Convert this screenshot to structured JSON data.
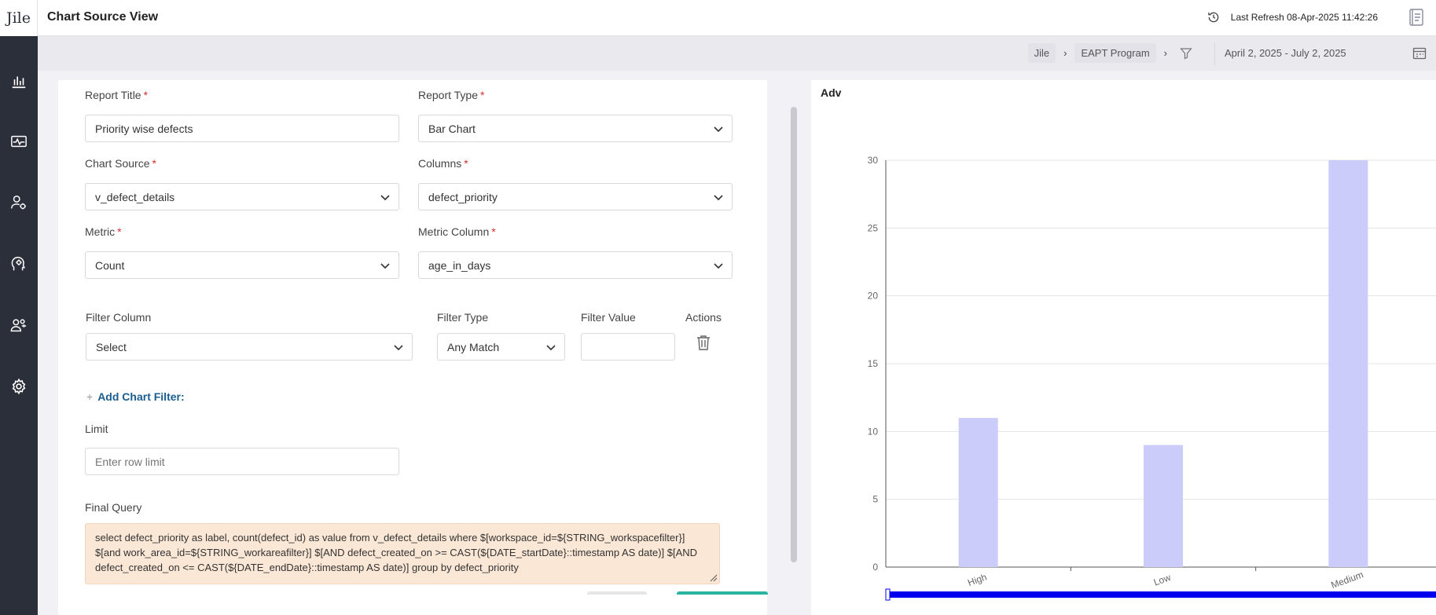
{
  "app": {
    "logo_text": "Jile"
  },
  "header": {
    "title": "Chart Source View",
    "last_refresh": "Last Refresh 08-Apr-2025 11:42:26"
  },
  "subbar": {
    "breadcrumbs": [
      "Jile",
      "EAPT Program"
    ],
    "date_range": "April 2, 2025 - July 2, 2025"
  },
  "sidebar": {
    "items": [
      {
        "icon": "bar-chart-icon"
      },
      {
        "icon": "monitor-pulse-icon"
      },
      {
        "icon": "user-settings-icon"
      },
      {
        "icon": "head-gear-icon"
      },
      {
        "icon": "team-icon"
      },
      {
        "icon": "gear-icon"
      }
    ]
  },
  "form": {
    "report_title_label": "Report Title",
    "report_title_value": "Priority wise defects",
    "report_type_label": "Report Type",
    "report_type_value": "Bar Chart",
    "chart_source_label": "Chart Source",
    "chart_source_value": "v_defect_details",
    "columns_label": "Columns",
    "columns_value": "defect_priority",
    "metric_label": "Metric",
    "metric_value": "Count",
    "metric_column_label": "Metric Column",
    "metric_column_value": "age_in_days",
    "required_mark": "*",
    "filter_column_label": "Filter Column",
    "filter_column_value": "Select",
    "filter_type_label": "Filter Type",
    "filter_type_value": "Any Match",
    "filter_value_label": "Filter Value",
    "filter_value_value": "",
    "actions_label": "Actions",
    "add_filter_plus": "+",
    "add_filter_label": "Add Chart Filter:",
    "limit_label": "Limit",
    "limit_placeholder": "Enter row limit",
    "final_query_label": "Final Query",
    "final_query_value": "select defect_priority as label, count(defect_id) as value from v_defect_details where $[workspace_id=${STRING_workspacefilter}] $[and work_area_id=${STRING_workareafilter}] $[AND defect_created_on >= CAST(${DATE_startDate}::timestamp AS date)] $[AND defect_created_on <= CAST(${DATE_endDate}::timestamp AS date)] group by defect_priority"
  },
  "chart_panel": {
    "title": "Adv"
  },
  "chart_data": {
    "type": "bar",
    "title": "Adv",
    "categories": [
      "High",
      "Low",
      "Medium"
    ],
    "values": [
      11,
      9,
      30
    ],
    "ylim": [
      0,
      30
    ],
    "yticks": [
      0,
      5,
      10,
      15,
      20,
      25,
      30
    ],
    "xlabel": "",
    "ylabel": "",
    "grid": true,
    "bar_color": "#ccccfa",
    "zoom_slider_color": "#0000ee"
  }
}
